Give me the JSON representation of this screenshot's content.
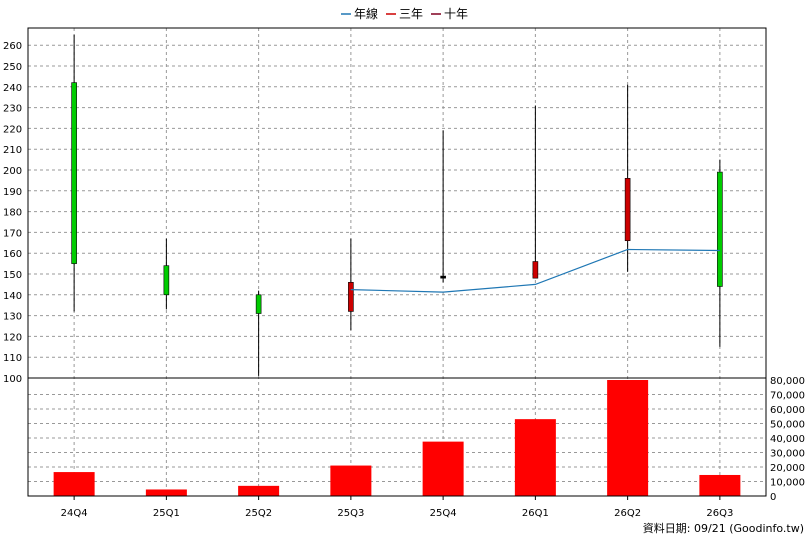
{
  "chart_data": {
    "type": "candlestick",
    "legend": {
      "placement": "top-center",
      "items": [
        {
          "label": "年線",
          "color": "#1f77b4"
        },
        {
          "label": "三年",
          "color": "#cc0000"
        },
        {
          "label": "十年",
          "color": "#800020"
        }
      ]
    },
    "categories": [
      "24Q4",
      "25Q1",
      "25Q2",
      "25Q3",
      "25Q4",
      "26Q1",
      "26Q2",
      "26Q3"
    ],
    "price": {
      "ylim": [
        100,
        265
      ],
      "yticks": [
        100,
        110,
        120,
        130,
        140,
        150,
        160,
        170,
        180,
        190,
        200,
        210,
        220,
        230,
        240,
        250,
        260
      ],
      "candles": [
        {
          "open": 155,
          "close": 242,
          "high": 265,
          "low": 132,
          "color": "#00cc00"
        },
        {
          "open": 140,
          "close": 154,
          "high": 167,
          "low": 133,
          "color": "#00cc00"
        },
        {
          "open": 131,
          "close": 140,
          "high": 142,
          "low": 101,
          "color": "#00cc00"
        },
        {
          "open": 146,
          "close": 132,
          "high": 167,
          "low": 123,
          "color": "#cc0000"
        },
        {
          "open": 149,
          "close": 148,
          "high": 219,
          "low": 146,
          "color": "#000000"
        },
        {
          "open": 156,
          "close": 148,
          "high": 231,
          "low": 148,
          "color": "#cc0000"
        },
        {
          "open": 196,
          "close": 166,
          "high": 241,
          "low": 151,
          "color": "#cc0000"
        },
        {
          "open": 144,
          "close": 199,
          "high": 205,
          "low": 115,
          "color": "#00cc00"
        }
      ],
      "line": {
        "name": "年線",
        "color": "#1f77b4",
        "points": [
          {
            "x": "25Q3",
            "y": 142.5
          },
          {
            "x": "25Q4",
            "y": 141.3
          },
          {
            "x": "26Q1",
            "y": 145
          },
          {
            "x": "26Q2",
            "y": 161.8
          },
          {
            "x": "26Q3",
            "y": 161.3
          }
        ]
      }
    },
    "volume": {
      "ylim": [
        0,
        80000
      ],
      "yticks": [
        "0",
        "10,000",
        "20,000",
        "30,000",
        "40,000",
        "50,000",
        "60,000",
        "70,000",
        "80,000"
      ],
      "values": [
        16500,
        4500,
        7000,
        21000,
        37500,
        53000,
        80000,
        14500
      ],
      "color": "#ff0000"
    },
    "grid": true
  },
  "footer": "資料日期: 09/21  (Goodinfo.tw)"
}
